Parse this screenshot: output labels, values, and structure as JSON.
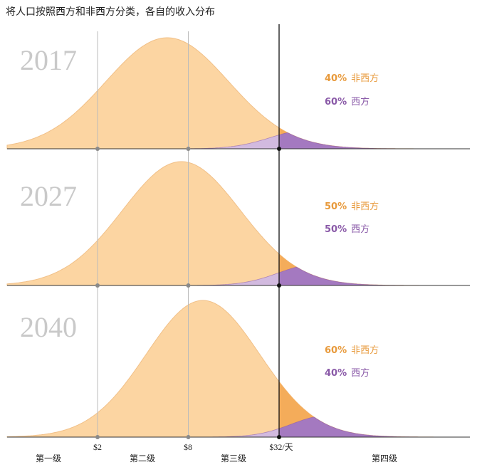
{
  "chart_data": {
    "type": "area",
    "title": "将人口按照西方和非西方分类，各自的收入分布",
    "x_axis": {
      "scale": "log",
      "unit": "$/天",
      "ticks": [
        {
          "value": 2,
          "label": "$2"
        },
        {
          "value": 8,
          "label": "$8"
        },
        {
          "value": 32,
          "label": "$32/天"
        }
      ],
      "levels": [
        "第一级",
        "第二级",
        "第三级",
        "第四级"
      ]
    },
    "panels": [
      {
        "year": "2017",
        "non_western_share": "40%",
        "western_share": "60%",
        "non_western_label": "非西方",
        "western_label": "西方",
        "total": {
          "peak_income": 5.8,
          "spread": 1.35,
          "peak_height": 1.0
        },
        "west": {
          "peak_income": 50,
          "spread": 0.82,
          "peak_height": 0.17
        }
      },
      {
        "year": "2027",
        "non_western_share": "50%",
        "western_share": "50%",
        "non_western_label": "非西方",
        "western_label": "西方",
        "total": {
          "peak_income": 7.2,
          "spread": 1.3,
          "peak_height": 1.0
        },
        "west": {
          "peak_income": 56,
          "spread": 0.8,
          "peak_height": 0.172
        }
      },
      {
        "year": "2040",
        "non_western_share": "60%",
        "western_share": "40%",
        "non_western_label": "非西方",
        "western_label": "西方",
        "total": {
          "peak_income": 10,
          "spread": 1.25,
          "peak_height": 1.0
        },
        "west": {
          "peak_income": 66,
          "spread": 0.77,
          "peak_height": 0.157
        }
      }
    ],
    "colors": {
      "total_fill": "#fcd5a2",
      "total_stroke": "#f1c088",
      "nonwest_upper_fill": "#f4ac5a",
      "west_low_fill": "#d2badf",
      "west_high_fill": "#a479c0",
      "west_stroke": "#8a5aa8",
      "guide_light": "#bbbbbb",
      "guide_dark": "#111111",
      "baseline": "#333333"
    }
  }
}
